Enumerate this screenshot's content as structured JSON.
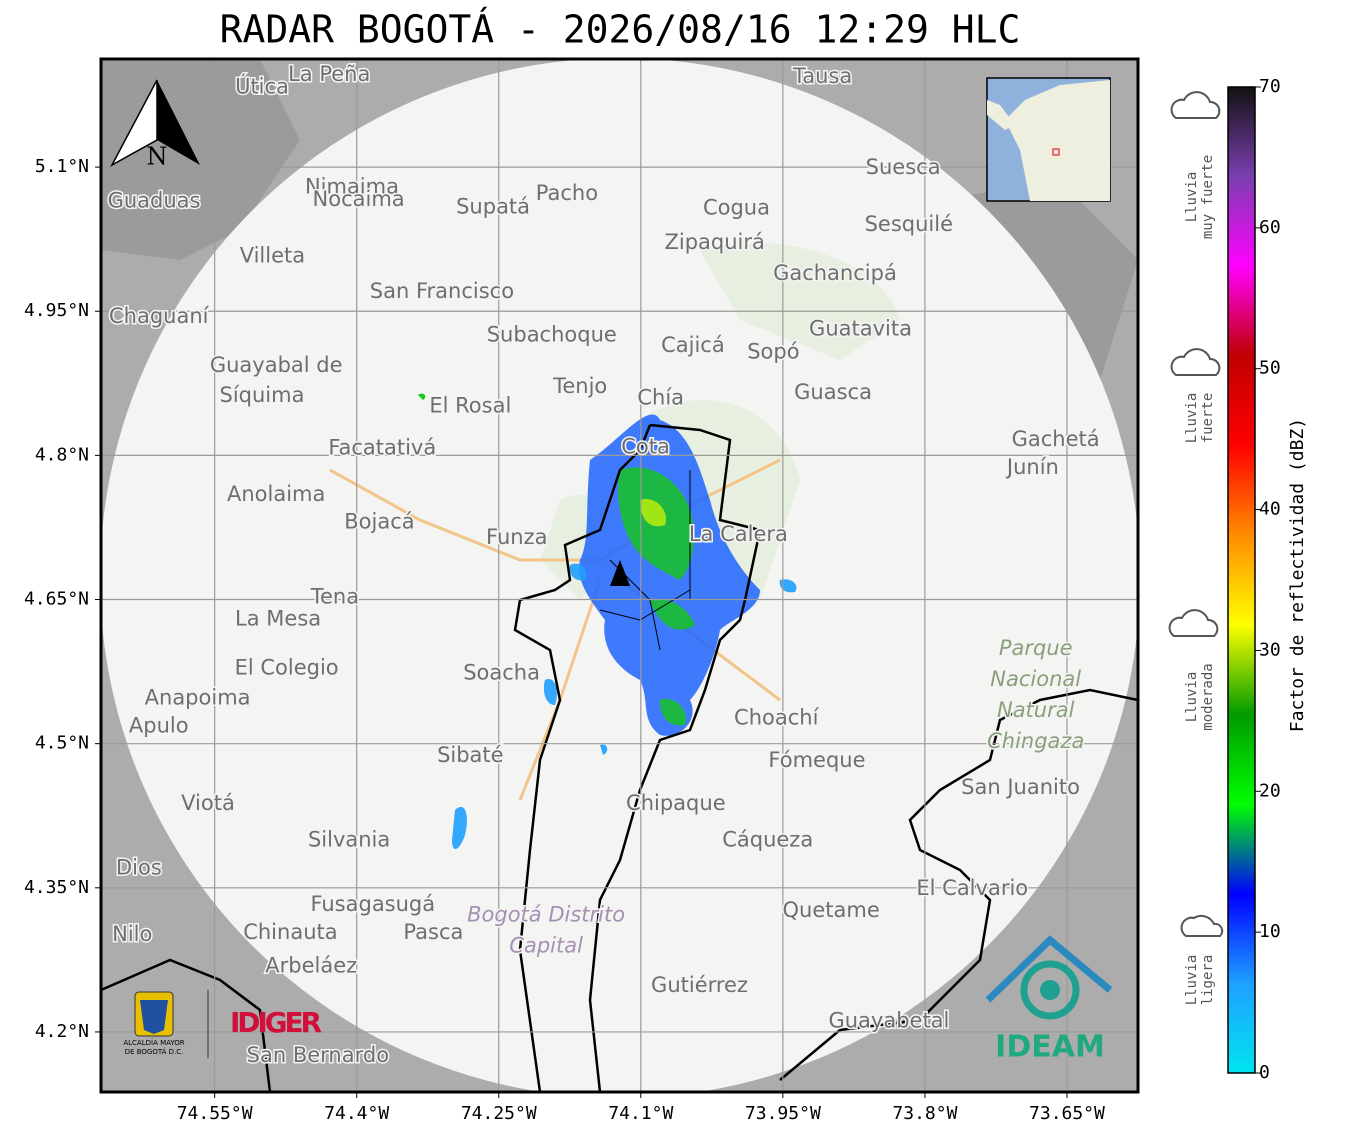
{
  "title": "RADAR BOGOTÁ - 2026/08/16 12:29 HLC",
  "map": {
    "xlim": [
      -74.67,
      -73.575
    ],
    "ylim": [
      4.1375,
      5.2125
    ],
    "xticks": [
      {
        "value": -74.55,
        "label": "74.55°W"
      },
      {
        "value": -74.4,
        "label": "74.4°W"
      },
      {
        "value": -74.25,
        "label": "74.25°W"
      },
      {
        "value": -74.1,
        "label": "74.1°W"
      },
      {
        "value": -73.95,
        "label": "73.95°W"
      },
      {
        "value": -73.8,
        "label": "73.8°W"
      },
      {
        "value": -73.65,
        "label": "73.65°W"
      }
    ],
    "yticks": [
      {
        "value": 5.1,
        "label": "5.1°N"
      },
      {
        "value": 4.95,
        "label": "4.95°N"
      },
      {
        "value": 4.8,
        "label": "4.8°N"
      },
      {
        "value": 4.65,
        "label": "4.65°N"
      },
      {
        "value": 4.5,
        "label": "4.5°N"
      },
      {
        "value": 4.35,
        "label": "4.35°N"
      },
      {
        "value": 4.2,
        "label": "4.2°N"
      }
    ],
    "grid": true,
    "places": [
      {
        "name": "La Peña",
        "lon": -74.429,
        "lat": 5.196
      },
      {
        "name": "Útica",
        "lon": -74.5,
        "lat": 5.183
      },
      {
        "name": "Tausa",
        "lon": -73.908,
        "lat": 5.194
      },
      {
        "name": "Pacho",
        "lon": -74.178,
        "lat": 5.072
      },
      {
        "name": "Nimaima",
        "lon": -74.405,
        "lat": 5.079
      },
      {
        "name": "Nocaima",
        "lon": -74.398,
        "lat": 5.066
      },
      {
        "name": "Supatá",
        "lon": -74.256,
        "lat": 5.058
      },
      {
        "name": "Guaduas",
        "lon": -74.614,
        "lat": 5.064
      },
      {
        "name": "Suesca",
        "lon": -73.823,
        "lat": 5.099
      },
      {
        "name": "Cogua",
        "lon": -73.999,
        "lat": 5.057
      },
      {
        "name": "Sesquilé",
        "lon": -73.817,
        "lat": 5.04
      },
      {
        "name": "Zipaquirá",
        "lon": -74.022,
        "lat": 5.021
      },
      {
        "name": "Villeta",
        "lon": -74.489,
        "lat": 5.007
      },
      {
        "name": "Gachancipá",
        "lon": -73.895,
        "lat": 4.989
      },
      {
        "name": "San Francisco",
        "lon": -74.31,
        "lat": 4.97
      },
      {
        "name": "Chaguaní",
        "lon": -74.609,
        "lat": 4.944
      },
      {
        "name": "Guatavita",
        "lon": -73.868,
        "lat": 4.931
      },
      {
        "name": "Subachoque",
        "lon": -74.194,
        "lat": 4.925
      },
      {
        "name": "Cajicá",
        "lon": -74.045,
        "lat": 4.914
      },
      {
        "name": "Sopó",
        "lon": -73.96,
        "lat": 4.907
      },
      {
        "name": "Guayabal de",
        "lon": -74.485,
        "lat": 4.893
      },
      {
        "name": "Síquima",
        "lon": -74.5,
        "lat": 4.862
      },
      {
        "name": "Tenjo",
        "lon": -74.164,
        "lat": 4.871
      },
      {
        "name": "Chía",
        "lon": -74.079,
        "lat": 4.859
      },
      {
        "name": "El Rosal",
        "lon": -74.28,
        "lat": 4.851
      },
      {
        "name": "Guasca",
        "lon": -73.897,
        "lat": 4.865
      },
      {
        "name": "Facatativá",
        "lon": -74.373,
        "lat": 4.807
      },
      {
        "name": "Cota",
        "lon": -74.095,
        "lat": 4.808
      },
      {
        "name": "Gachetá",
        "lon": -73.662,
        "lat": 4.816
      },
      {
        "name": "Junín",
        "lon": -73.686,
        "lat": 4.787
      },
      {
        "name": "Anolaima",
        "lon": -74.485,
        "lat": 4.759
      },
      {
        "name": "Bojacá",
        "lon": -74.376,
        "lat": 4.73
      },
      {
        "name": "La Calera",
        "lon": -73.997,
        "lat": 4.717
      },
      {
        "name": "Funza",
        "lon": -74.231,
        "lat": 4.714
      },
      {
        "name": "Tena",
        "lon": -74.423,
        "lat": 4.652
      },
      {
        "name": "La Mesa",
        "lon": -74.483,
        "lat": 4.629
      },
      {
        "name": "El Colegio",
        "lon": -74.474,
        "lat": 4.578
      },
      {
        "name": "Soacha",
        "lon": -74.247,
        "lat": 4.573
      },
      {
        "name": "Anapoima",
        "lon": -74.568,
        "lat": 4.547
      },
      {
        "name": "Apulo",
        "lon": -74.609,
        "lat": 4.518
      },
      {
        "name": "Choachí",
        "lon": -73.957,
        "lat": 4.526
      },
      {
        "name": "Sibaté",
        "lon": -74.28,
        "lat": 4.487
      },
      {
        "name": "Fómeque",
        "lon": -73.914,
        "lat": 4.482
      },
      {
        "name": "San Juanito",
        "lon": -73.699,
        "lat": 4.454
      },
      {
        "name": "Chipaque",
        "lon": -74.063,
        "lat": 4.437
      },
      {
        "name": "Viotá",
        "lon": -74.557,
        "lat": 4.437
      },
      {
        "name": "Silvania",
        "lon": -74.408,
        "lat": 4.399
      },
      {
        "name": "Cáqueza",
        "lon": -73.966,
        "lat": 4.399
      },
      {
        "name": "Dios",
        "lon": -74.63,
        "lat": 4.37
      },
      {
        "name": "El Calvario",
        "lon": -73.75,
        "lat": 4.349
      },
      {
        "name": "Fusagasugá",
        "lon": -74.383,
        "lat": 4.332
      },
      {
        "name": "Quetame",
        "lon": -73.899,
        "lat": 4.326
      },
      {
        "name": "Nilo",
        "lon": -74.637,
        "lat": 4.301
      },
      {
        "name": "Chinauta",
        "lon": -74.47,
        "lat": 4.303
      },
      {
        "name": "Pasca",
        "lon": -74.319,
        "lat": 4.303
      },
      {
        "name": "Arbeláez",
        "lon": -74.448,
        "lat": 4.268
      },
      {
        "name": "Gutiérrez",
        "lon": -74.038,
        "lat": 4.248
      },
      {
        "name": "Guayabetal",
        "lon": -73.838,
        "lat": 4.211
      },
      {
        "name": "San Bernardo",
        "lon": -74.441,
        "lat": 4.175
      }
    ],
    "areas": [
      {
        "style": "park",
        "lines": [
          "Parque",
          "Nacional",
          "Natural",
          "Chingaza"
        ],
        "lon": -73.683,
        "lat": 4.55
      },
      {
        "style": "district",
        "lines": [
          "Bogotá Distrito",
          "Capital"
        ],
        "lon": -74.2,
        "lat": 4.305
      }
    ],
    "north": "N"
  },
  "colorbar": {
    "label": "Factor de reflectividad (dBZ)",
    "lim": [
      0,
      70
    ],
    "ticks": [
      0,
      10,
      20,
      30,
      40,
      50,
      60,
      70
    ],
    "colors": [
      "#00e5ee",
      "#1ea0ff",
      "#0000ff",
      "#00ff00",
      "#009a00",
      "#ffff00",
      "#ff8c00",
      "#ff0000",
      "#c00000",
      "#ff00ff",
      "#7b3fb0",
      "#111111"
    ]
  },
  "intensity_labels": [
    {
      "lines": [
        "Lluvia",
        "muy fuerte"
      ]
    },
    {
      "lines": [
        "Lluvia",
        "fuerte"
      ]
    },
    {
      "lines": [
        "Lluvia",
        "moderada"
      ]
    },
    {
      "lines": [
        "Lluvia",
        "ligera"
      ]
    }
  ],
  "logos": {
    "city": [
      "ALCALDÍA MAYOR",
      "DE BOGOTÁ D.C."
    ],
    "idiger": "IDIGER",
    "ideam": "IDEAM"
  }
}
